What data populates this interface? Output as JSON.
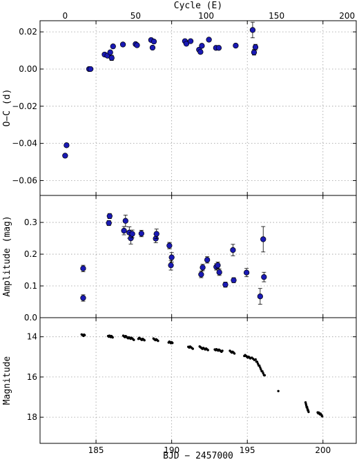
{
  "chart_data": {
    "type": "scatter",
    "top_axis": {
      "label": "Cycle (E)",
      "range": [
        -17.8,
        206.5
      ],
      "ticks": [
        0,
        50,
        100,
        150,
        200
      ],
      "tick_labels": [
        "0",
        "50",
        "100",
        "150",
        "200"
      ]
    },
    "x_axis": {
      "label": "BJD − 2457000",
      "range": [
        181.3,
        202.2
      ],
      "ticks": [
        185,
        190,
        195,
        200
      ],
      "tick_labels": [
        "185",
        "190",
        "195",
        "200"
      ]
    },
    "panels": [
      {
        "name": "oc",
        "ylabel": "O−C (d)",
        "ylim": [
          -0.068,
          0.026
        ],
        "yticks": [
          0.02,
          0,
          -0.02,
          -0.04,
          -0.06
        ],
        "ytick_labels": [
          "0.02",
          "0.00",
          "−0.02",
          "−0.04",
          "−0.06"
        ],
        "points": [
          {
            "E": 0,
            "y": -0.0466,
            "err": 0.001
          },
          {
            "E": 1,
            "y": -0.041,
            "err": 0.0006
          },
          {
            "E": 17,
            "y": 0.0,
            "err": 0.0005
          },
          {
            "E": 18,
            "y": 0.0,
            "err": 0.0005
          },
          {
            "E": 28,
            "y": 0.0078,
            "err": 0.0008
          },
          {
            "E": 30,
            "y": 0.0072,
            "err": 0.0009
          },
          {
            "E": 32,
            "y": 0.009,
            "err": 0.0012
          },
          {
            "E": 33,
            "y": 0.006,
            "err": 0.0014
          },
          {
            "E": 34,
            "y": 0.0122,
            "err": 0.001
          },
          {
            "E": 41,
            "y": 0.0132,
            "err": 0.0008
          },
          {
            "E": 50,
            "y": 0.0134,
            "err": 0.0008
          },
          {
            "E": 51,
            "y": 0.0128,
            "err": 0.0008
          },
          {
            "E": 61,
            "y": 0.0156,
            "err": 0.0009
          },
          {
            "E": 62,
            "y": 0.0115,
            "err": 0.0012
          },
          {
            "E": 63,
            "y": 0.0148,
            "err": 0.0009
          },
          {
            "E": 85,
            "y": 0.015,
            "err": 0.0008
          },
          {
            "E": 86,
            "y": 0.0136,
            "err": 0.0008
          },
          {
            "E": 89,
            "y": 0.015,
            "err": 0.0008
          },
          {
            "E": 95,
            "y": 0.0104,
            "err": 0.0008
          },
          {
            "E": 96,
            "y": 0.0092,
            "err": 0.0008
          },
          {
            "E": 97,
            "y": 0.0125,
            "err": 0.0008
          },
          {
            "E": 102,
            "y": 0.0158,
            "err": 0.0008
          },
          {
            "E": 107,
            "y": 0.0114,
            "err": 0.0008
          },
          {
            "E": 109,
            "y": 0.0114,
            "err": 0.0008
          },
          {
            "E": 121,
            "y": 0.0126,
            "err": 0.0008
          },
          {
            "E": 133,
            "y": 0.021,
            "err": 0.0042
          },
          {
            "E": 134,
            "y": 0.009,
            "err": 0.0015
          },
          {
            "E": 135,
            "y": 0.0118,
            "err": 0.0015
          }
        ]
      },
      {
        "name": "amp",
        "ylabel": "Amplitude (mag)",
        "ylim": [
          0.0,
          0.385
        ],
        "yticks": [
          0.0,
          0.1,
          0.2,
          0.3
        ],
        "ytick_labels": [
          "0.0",
          "0.1",
          "0.2",
          "0.3"
        ],
        "points": [
          {
            "x": 184.15,
            "y": 0.155,
            "err": 0.01
          },
          {
            "x": 184.15,
            "y": 0.062,
            "err": 0.01
          },
          {
            "x": 185.85,
            "y": 0.298,
            "err": 0.008
          },
          {
            "x": 185.9,
            "y": 0.32,
            "err": 0.008
          },
          {
            "x": 186.85,
            "y": 0.274,
            "err": 0.013
          },
          {
            "x": 186.95,
            "y": 0.305,
            "err": 0.018
          },
          {
            "x": 187.2,
            "y": 0.268,
            "err": 0.018
          },
          {
            "x": 187.3,
            "y": 0.25,
            "err": 0.018
          },
          {
            "x": 187.4,
            "y": 0.264,
            "err": 0.012
          },
          {
            "x": 188.0,
            "y": 0.265,
            "err": 0.01
          },
          {
            "x": 188.95,
            "y": 0.249,
            "err": 0.013
          },
          {
            "x": 189.0,
            "y": 0.264,
            "err": 0.015
          },
          {
            "x": 189.85,
            "y": 0.227,
            "err": 0.01
          },
          {
            "x": 189.95,
            "y": 0.165,
            "err": 0.015
          },
          {
            "x": 190.0,
            "y": 0.19,
            "err": 0.015
          },
          {
            "x": 191.95,
            "y": 0.136,
            "err": 0.01
          },
          {
            "x": 192.05,
            "y": 0.158,
            "err": 0.01
          },
          {
            "x": 192.35,
            "y": 0.182,
            "err": 0.01
          },
          {
            "x": 192.95,
            "y": 0.16,
            "err": 0.01
          },
          {
            "x": 193.05,
            "y": 0.165,
            "err": 0.01
          },
          {
            "x": 193.15,
            "y": 0.143,
            "err": 0.01
          },
          {
            "x": 193.55,
            "y": 0.104,
            "err": 0.008
          },
          {
            "x": 194.05,
            "y": 0.213,
            "err": 0.018
          },
          {
            "x": 194.1,
            "y": 0.118,
            "err": 0.008
          },
          {
            "x": 194.95,
            "y": 0.142,
            "err": 0.013
          },
          {
            "x": 195.85,
            "y": 0.067,
            "err": 0.025
          },
          {
            "x": 196.05,
            "y": 0.247,
            "err": 0.04
          },
          {
            "x": 196.1,
            "y": 0.128,
            "err": 0.015
          }
        ]
      },
      {
        "name": "mag",
        "ylabel": "Magnitude",
        "ylim": [
          19.3,
          13.05
        ],
        "yticks": [
          14,
          16,
          18
        ],
        "ytick_labels": [
          "14",
          "16",
          "18"
        ],
        "clusters": [
          {
            "x0": 184.05,
            "x1": 184.25,
            "y0": 13.92,
            "y1": 13.92,
            "n": 6
          },
          {
            "x0": 185.8,
            "x1": 186.1,
            "y0": 13.95,
            "y1": 14.02,
            "n": 8
          },
          {
            "x0": 186.8,
            "x1": 187.5,
            "y0": 13.97,
            "y1": 14.12,
            "n": 14
          },
          {
            "x0": 187.8,
            "x1": 188.2,
            "y0": 14.08,
            "y1": 14.15,
            "n": 8
          },
          {
            "x0": 188.8,
            "x1": 189.1,
            "y0": 14.1,
            "y1": 14.18,
            "n": 6
          },
          {
            "x0": 189.8,
            "x1": 190.05,
            "y0": 14.25,
            "y1": 14.32,
            "n": 6
          },
          {
            "x0": 191.1,
            "x1": 191.4,
            "y0": 14.5,
            "y1": 14.56,
            "n": 6
          },
          {
            "x0": 191.85,
            "x1": 192.4,
            "y0": 14.52,
            "y1": 14.65,
            "n": 10
          },
          {
            "x0": 192.85,
            "x1": 193.35,
            "y0": 14.62,
            "y1": 14.72,
            "n": 10
          },
          {
            "x0": 193.85,
            "x1": 194.15,
            "y0": 14.72,
            "y1": 14.82,
            "n": 6
          },
          {
            "x0": 194.8,
            "x1": 195.2,
            "y0": 14.93,
            "y1": 15.05,
            "n": 8
          },
          {
            "x0": 195.3,
            "x1": 195.55,
            "y0": 15.05,
            "y1": 15.15,
            "n": 4
          },
          {
            "x0": 195.6,
            "x1": 196.15,
            "y0": 15.2,
            "y1": 15.95,
            "n": 12
          },
          {
            "x0": 197.05,
            "x1": 197.05,
            "y0": 16.7,
            "y1": 16.7,
            "n": 1
          },
          {
            "x0": 198.85,
            "x1": 199.05,
            "y0": 17.3,
            "y1": 17.75,
            "n": 9
          },
          {
            "x0": 199.65,
            "x1": 199.95,
            "y0": 17.75,
            "y1": 17.92,
            "n": 9
          }
        ]
      }
    ]
  }
}
